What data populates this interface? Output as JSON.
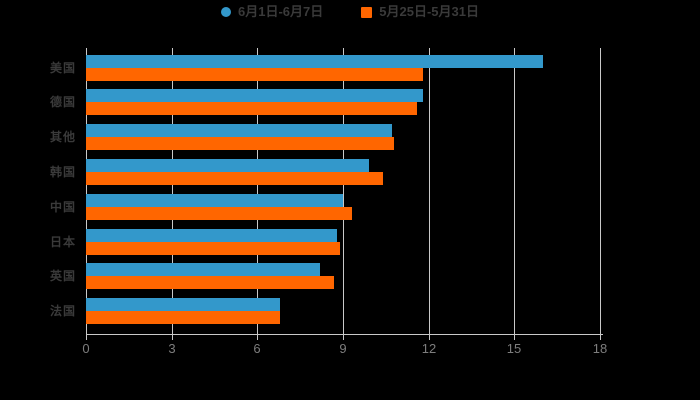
{
  "chart_data": {
    "type": "bar",
    "orientation": "horizontal",
    "title": "",
    "xlabel": "",
    "ylabel": "",
    "xlim": [
      0,
      18
    ],
    "xticks": [
      0,
      3,
      6,
      9,
      12,
      15,
      18
    ],
    "grid": true,
    "legend_position": "top",
    "categories": [
      "美国",
      "德国",
      "其他",
      "韩国",
      "中国",
      "日本",
      "英国",
      "法国"
    ],
    "series": [
      {
        "name": "6月1日-6月7日",
        "color": "#3398cb",
        "marker": "circle",
        "values": [
          16.0,
          11.8,
          10.7,
          9.9,
          9.0,
          8.8,
          8.2,
          6.8
        ]
      },
      {
        "name": "5月25日-5月31日",
        "color": "#ff6600",
        "marker": "square",
        "values": [
          11.8,
          11.6,
          10.8,
          10.4,
          9.3,
          8.9,
          8.7,
          6.8
        ]
      }
    ]
  },
  "colors": {
    "background": "#000000",
    "gridline": "#c9c9c9",
    "axis_line": "#c9c9c9",
    "tick_label": "#7d7d7d",
    "category_label": "#3a3a3a",
    "legend_label": "#3a3a3a"
  }
}
